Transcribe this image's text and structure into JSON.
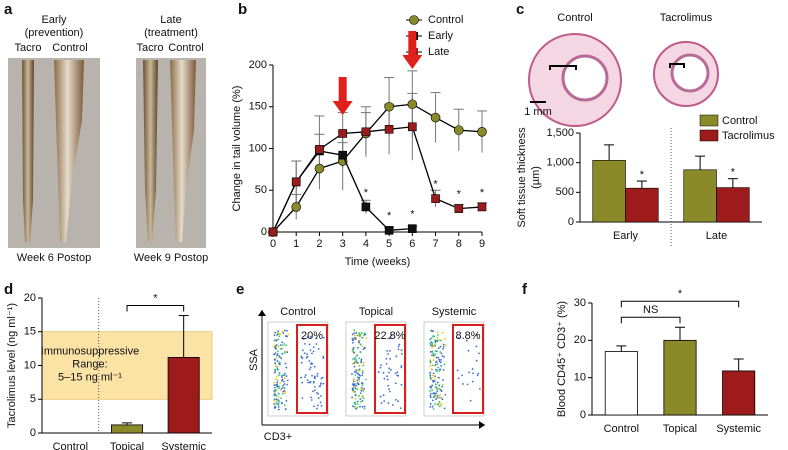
{
  "panel_labels": [
    "a",
    "b",
    "c",
    "d",
    "e",
    "f"
  ],
  "panel_a": {
    "groups": [
      {
        "title": "Early",
        "subtitle": "(prevention)",
        "labels": [
          "Tacro",
          "Control"
        ],
        "caption": "Week 6 Postop"
      },
      {
        "title": "Late",
        "subtitle": "(treatment)",
        "labels": [
          "Tacro",
          "Control"
        ],
        "caption": "Week 9 Postop"
      }
    ]
  },
  "panel_c_images": {
    "labels": [
      "Control",
      "Tacrolimus"
    ],
    "scale_bar": "1 mm"
  },
  "panel_e": {
    "plots": [
      {
        "title": "Control",
        "percent": "20%"
      },
      {
        "title": "Topical",
        "percent": "22.8%"
      },
      {
        "title": "Systemic",
        "percent": "8.8%"
      }
    ],
    "y_label": "SSA",
    "x_label": "CD3+"
  },
  "chart_data": [
    {
      "type": "line",
      "x_label": "Time (weeks)",
      "y_label": "Change in tail volume (%)",
      "x": [
        0,
        1,
        2,
        3,
        4,
        5,
        6,
        7,
        8,
        9
      ],
      "xlim": [
        0,
        9
      ],
      "xticks": [
        0,
        1,
        2,
        3,
        4,
        5,
        6,
        7,
        8,
        9
      ],
      "ylim": [
        0,
        200
      ],
      "yticks": [
        0,
        50,
        100,
        150,
        200
      ],
      "series": [
        {
          "name": "Control",
          "color": "#8a8a2a",
          "marker": "circle",
          "values": [
            0,
            30,
            76,
            85,
            118,
            150,
            153,
            137,
            122,
            120
          ],
          "errors": [
            0,
            15,
            25,
            35,
            25,
            35,
            40,
            30,
            25,
            25
          ]
        },
        {
          "name": "Early",
          "color": "#111111",
          "marker": "square",
          "values": [
            0,
            60,
            97,
            92,
            30,
            2,
            4,
            null,
            null,
            null
          ],
          "errors": [
            0,
            25,
            20,
            15,
            8,
            3,
            3,
            null,
            null,
            null
          ]
        },
        {
          "name": "Late",
          "color": "#9b1c1c",
          "marker": "square",
          "values": [
            0,
            60,
            99,
            118,
            120,
            123,
            126,
            40,
            28,
            30
          ],
          "errors": [
            0,
            25,
            40,
            25,
            30,
            30,
            40,
            10,
            5,
            5
          ]
        }
      ],
      "arrows_x": [
        3,
        6
      ],
      "arrow_color": "#e0201b",
      "annotations": [
        {
          "x": 4,
          "text": "*"
        },
        {
          "x": 5,
          "text": "*"
        },
        {
          "x": 6,
          "text": "*"
        },
        {
          "x": 7,
          "text": "*"
        },
        {
          "x": 8,
          "text": "*"
        },
        {
          "x": 9,
          "text": "*"
        }
      ]
    },
    {
      "type": "grouped_bar",
      "y_label": [
        "Soft tissue thickness",
        "(µm)"
      ],
      "categories": [
        "Early",
        "Late"
      ],
      "series": [
        {
          "name": "Control",
          "color": "#8a8a2a",
          "values": [
            1040,
            880
          ],
          "errors": [
            260,
            230
          ]
        },
        {
          "name": "Tacrolimus",
          "color": "#9e1b1b",
          "values": [
            570,
            580
          ],
          "errors": [
            120,
            150
          ]
        }
      ],
      "ylim": [
        0,
        1500
      ],
      "yticks": [
        0,
        500,
        {
          "value": 1000,
          "label": "1,000"
        },
        {
          "value": 1500,
          "label": "1,500"
        }
      ],
      "annotations": [
        "*",
        "*"
      ]
    },
    {
      "type": "bar",
      "y_label": "Tacrolimus level (ng ml⁻¹)",
      "categories": [
        "Control",
        "Topical",
        "Systemic"
      ],
      "values": [
        0,
        1.2,
        11.2
      ],
      "errors": [
        null,
        0.3,
        6.2
      ],
      "colors": [
        "#ffffff",
        "#8a8a2a",
        "#9e1b1b"
      ],
      "ylim": [
        0,
        20
      ],
      "yticks": [
        0,
        5,
        10,
        15,
        20
      ],
      "range": {
        "values": [
          5,
          15
        ],
        "label": [
          "Immunosuppressive",
          "Range:",
          "5–15 ng ml⁻¹"
        ],
        "color": "#fbe3a6"
      },
      "brackets": [
        {
          "from": 1,
          "to": 2,
          "label": "*"
        }
      ]
    },
    {
      "type": "bar",
      "y_label": "Blood CD45⁺ CD3⁺ (%)",
      "categories": [
        "Control",
        "Topical",
        "Systemic"
      ],
      "values": [
        17,
        20,
        11.8
      ],
      "errors": [
        1.5,
        3.5,
        3.2
      ],
      "colors": [
        "#ffffff",
        "#8a8a2a",
        "#9e1b1b"
      ],
      "ylim": [
        0,
        30
      ],
      "yticks": [
        0,
        10,
        20,
        30
      ],
      "brackets": [
        {
          "from": 0,
          "to": 1,
          "label": "NS"
        },
        {
          "from": 0,
          "to": 2,
          "label": "*"
        }
      ]
    }
  ]
}
